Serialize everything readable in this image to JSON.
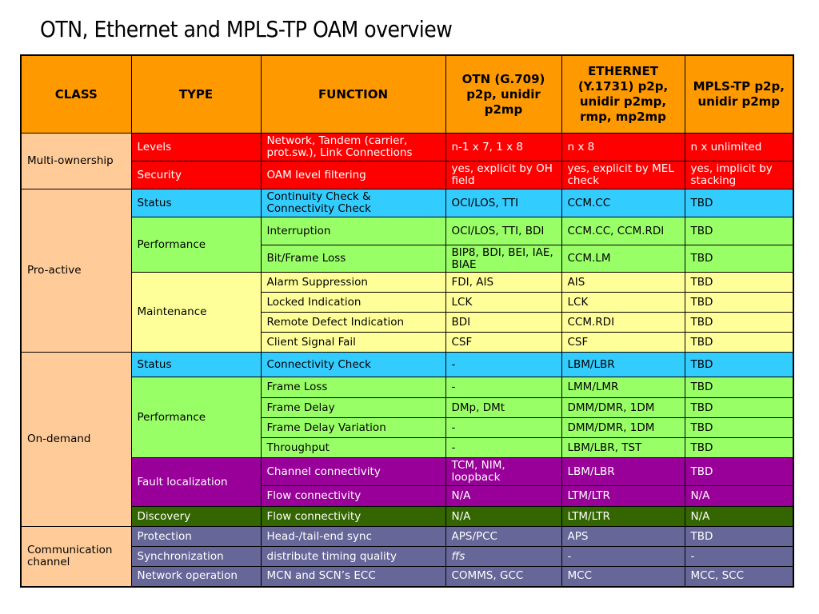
{
  "title": "OTN, Ethernet and MPLS-TP OAM overview",
  "table": {
    "header": [
      "CLASS",
      "TYPE",
      "FUNCTION",
      "OTN (G.709) p2p, unidir p2mp",
      "ETHERNET (Y.1731) p2p, unidir p2mp, rmp, mp2mp",
      "MPLS-TP p2p, unidir p2mp"
    ],
    "groups": [
      {
        "class": "Multi-ownership",
        "types": [
          {
            "type": "Levels",
            "color": "#ff0000",
            "text_color": "#ffffff",
            "rows": [
              [
                "Network, Tandem (carrier, prot.sw.), Link Connections",
                "n-1 x 7, 1 x 8",
                "n x 8",
                "n x unlimited"
              ]
            ]
          },
          {
            "type": "Security",
            "color": "#ff0000",
            "text_color": "#ffffff",
            "rows": [
              [
                "OAM level filtering",
                "yes, explicit by OH field",
                "yes, explicit by MEL check",
                "yes, implicit by stacking"
              ]
            ]
          }
        ]
      },
      {
        "class": "Pro-active",
        "types": [
          {
            "type": "Status",
            "color": "#33ccff",
            "text_color": "#000000",
            "rows": [
              [
                "Continuity Check & Connectivity Check",
                "OCI/LOS, TTI",
                "CCM.CC",
                "TBD"
              ]
            ]
          },
          {
            "type": "Performance",
            "color": "#99ff66",
            "text_color": "#000000",
            "rows": [
              [
                "Interruption",
                "OCI/LOS, TTI, BDI",
                "CCM.CC, CCM.RDI",
                "TBD"
              ],
              [
                "Bit/Frame Loss",
                "BIP8, BDI, BEI, IAE, BIAE",
                "CCM.LM",
                "TBD"
              ]
            ]
          },
          {
            "type": "Maintenance",
            "color": "#ffff99",
            "text_color": "#000000",
            "rows": [
              [
                "Alarm Suppression",
                "FDI, AIS",
                "AIS",
                "TBD"
              ],
              [
                "Locked Indication",
                "LCK",
                "LCK",
                "TBD"
              ],
              [
                "Remote Defect Indication",
                "BDI",
                "CCM.RDI",
                "TBD"
              ],
              [
                "Client Signal Fail",
                "CSF",
                "CSF",
                "TBD"
              ]
            ]
          }
        ]
      },
      {
        "class": "On-demand",
        "types": [
          {
            "type": "Status",
            "color": "#33ccff",
            "text_color": "#000000",
            "rows": [
              [
                "Connectivity Check",
                "-",
                "LBM/LBR",
                "TBD"
              ]
            ]
          },
          {
            "type": "Performance",
            "color": "#99ff66",
            "text_color": "#000000",
            "rows": [
              [
                "Frame Loss",
                "-",
                "LMM/LMR",
                "TBD"
              ],
              [
                "Frame Delay",
                "DMp, DMt",
                "DMM/DMR, 1DM",
                "TBD"
              ],
              [
                "Frame Delay Variation",
                "-",
                "DMM/DMR, 1DM",
                "TBD"
              ],
              [
                "Throughput",
                "-",
                "LBM/LBR, TST",
                "TBD"
              ]
            ]
          },
          {
            "type": "Fault localization",
            "color": "#990099",
            "text_color": "#ffffff",
            "rows": [
              [
                "Channel connectivity",
                "TCM, NIM, loopback",
                "LBM/LBR",
                "TBD"
              ],
              [
                "Flow connectivity",
                "N/A",
                "LTM/LTR",
                "N/A"
              ]
            ]
          },
          {
            "type": "Discovery",
            "color": "#336600",
            "text_color": "#ffffff",
            "rows": [
              [
                "Flow connectivity",
                "N/A",
                "LTM/LTR",
                "N/A"
              ]
            ]
          }
        ]
      },
      {
        "class": "Communication channel",
        "types": [
          {
            "type": "Protection",
            "color": "#666699",
            "text_color": "#ffffff",
            "rows": [
              [
                "Head-/tail-end sync",
                "APS/PCC",
                "APS",
                "TBD"
              ]
            ]
          },
          {
            "type": "Synchronization",
            "color": "#666699",
            "text_color": "#ffffff",
            "rows": [
              [
                "distribute timing quality",
                "ffs",
                "-",
                "-"
              ]
            ]
          },
          {
            "type": "Network operation",
            "color": "#666699",
            "text_color": "#ffffff",
            "rows": [
              [
                "MCN and SCN’s ECC",
                "COMMS, GCC",
                "MCC",
                "MCC, SCC"
              ]
            ]
          }
        ]
      }
    ]
  }
}
